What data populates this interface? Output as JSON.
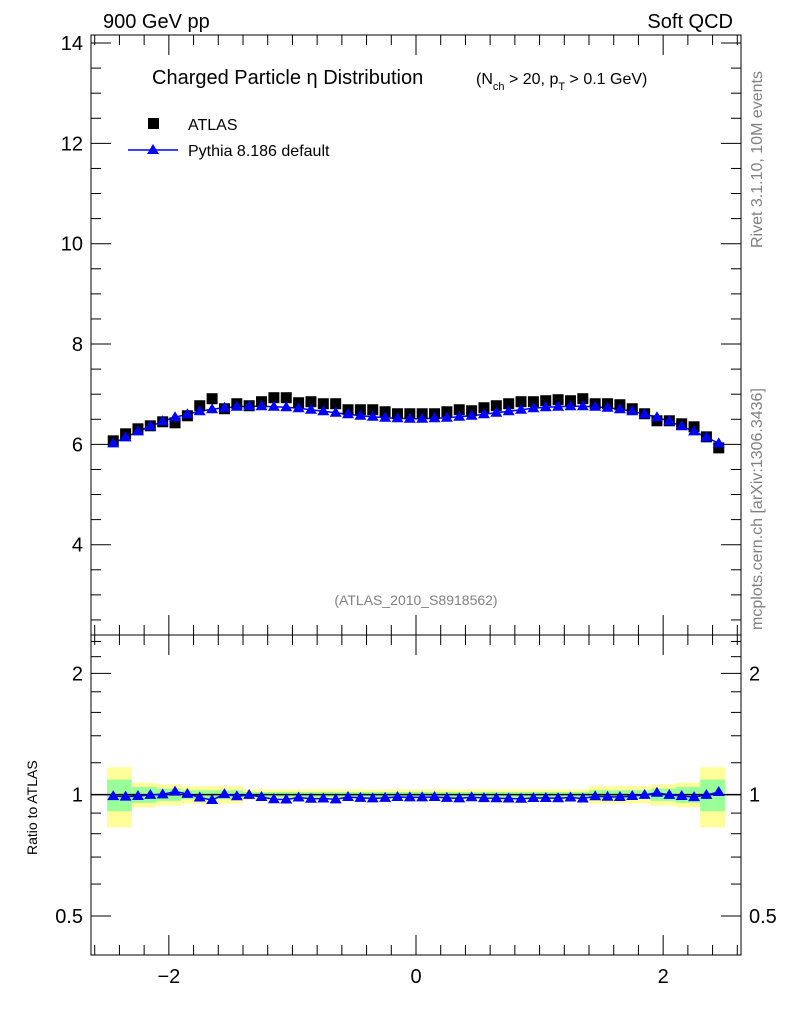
{
  "header": {
    "left": "900 GeV pp",
    "right": "Soft QCD"
  },
  "side": {
    "top": "Rivet 3.1.10,  10M events",
    "bottom": "mcplots.cern.ch [arXiv:1306.3436]"
  },
  "chart_data": [
    {
      "type": "scatter",
      "title": "Charged Particle η Distribution",
      "subtitle_parts": [
        "(N",
        "ch",
        " > 20, p",
        "T",
        " > 0.1 GeV)"
      ],
      "xlim": [
        -2.63,
        2.63
      ],
      "ylim": [
        2.2,
        14.16
      ],
      "yticks": [
        "4",
        "6",
        "8",
        "10",
        "12",
        "14"
      ],
      "watermark": "(ATLAS_2010_S8918562)",
      "x": [
        -2.45,
        -2.35,
        -2.25,
        -2.15,
        -2.05,
        -1.95,
        -1.85,
        -1.75,
        -1.65,
        -1.55,
        -1.45,
        -1.35,
        -1.25,
        -1.15,
        -1.05,
        -0.95,
        -0.85,
        -0.75,
        -0.65,
        -0.55,
        -0.45,
        -0.35,
        -0.25,
        -0.15,
        -0.05,
        0.05,
        0.15,
        0.25,
        0.35,
        0.45,
        0.55,
        0.65,
        0.75,
        0.85,
        0.95,
        1.05,
        1.15,
        1.25,
        1.35,
        1.45,
        1.55,
        1.65,
        1.75,
        1.85,
        1.95,
        2.05,
        2.15,
        2.25,
        2.35,
        2.45
      ],
      "series": [
        {
          "name": "ATLAS",
          "color": "#000000",
          "marker": "square",
          "values": [
            6.07,
            6.21,
            6.31,
            6.37,
            6.45,
            6.43,
            6.57,
            6.77,
            6.91,
            6.71,
            6.81,
            6.77,
            6.85,
            6.93,
            6.93,
            6.83,
            6.85,
            6.81,
            6.81,
            6.69,
            6.69,
            6.69,
            6.65,
            6.61,
            6.61,
            6.61,
            6.61,
            6.65,
            6.69,
            6.67,
            6.73,
            6.77,
            6.81,
            6.85,
            6.85,
            6.87,
            6.89,
            6.87,
            6.91,
            6.81,
            6.81,
            6.79,
            6.71,
            6.61,
            6.47,
            6.47,
            6.41,
            6.35,
            6.15,
            5.93
          ]
        },
        {
          "name": "Pythia 8.186 default",
          "color": "#0000ff",
          "marker": "triangle",
          "values": [
            6.02,
            6.14,
            6.26,
            6.36,
            6.46,
            6.54,
            6.6,
            6.66,
            6.7,
            6.73,
            6.75,
            6.76,
            6.76,
            6.75,
            6.74,
            6.72,
            6.69,
            6.66,
            6.63,
            6.6,
            6.57,
            6.55,
            6.53,
            6.52,
            6.51,
            6.51,
            6.52,
            6.53,
            6.55,
            6.57,
            6.6,
            6.63,
            6.66,
            6.69,
            6.72,
            6.74,
            6.75,
            6.76,
            6.76,
            6.75,
            6.73,
            6.7,
            6.66,
            6.6,
            6.54,
            6.46,
            6.36,
            6.26,
            6.14,
            6.02
          ]
        }
      ]
    },
    {
      "type": "scatter",
      "ylabel": "Ratio to ATLAS",
      "yscale": "log",
      "ylim": [
        0.4,
        2.49
      ],
      "yticks": [
        "0.5",
        "1",
        "2"
      ],
      "xticks": [
        "−2",
        "0",
        "2"
      ],
      "band_total": [
        0.17,
        0.17,
        0.07,
        0.07,
        0.06,
        0.06,
        0.05,
        0.05,
        0.05,
        0.05,
        0.05,
        0.03,
        0.03,
        0.03,
        0.03,
        0.03,
        0.03,
        0.03,
        0.03,
        0.03,
        0.03,
        0.03,
        0.03,
        0.03,
        0.03,
        0.03,
        0.03,
        0.03,
        0.03,
        0.03,
        0.03,
        0.03,
        0.03,
        0.03,
        0.03,
        0.03,
        0.03,
        0.03,
        0.03,
        0.05,
        0.05,
        0.05,
        0.05,
        0.05,
        0.06,
        0.06,
        0.07,
        0.07,
        0.17,
        0.17
      ],
      "band_stat": [
        0.09,
        0.09,
        0.045,
        0.045,
        0.035,
        0.035,
        0.025,
        0.025,
        0.025,
        0.025,
        0.025,
        0.015,
        0.015,
        0.015,
        0.015,
        0.015,
        0.015,
        0.015,
        0.015,
        0.015,
        0.015,
        0.015,
        0.015,
        0.015,
        0.015,
        0.015,
        0.015,
        0.015,
        0.015,
        0.015,
        0.015,
        0.015,
        0.015,
        0.015,
        0.015,
        0.015,
        0.015,
        0.015,
        0.015,
        0.025,
        0.025,
        0.025,
        0.025,
        0.025,
        0.035,
        0.035,
        0.045,
        0.045,
        0.09,
        0.09
      ],
      "band_colors": {
        "total": "#ffff99",
        "stat": "#99ff99"
      }
    }
  ]
}
